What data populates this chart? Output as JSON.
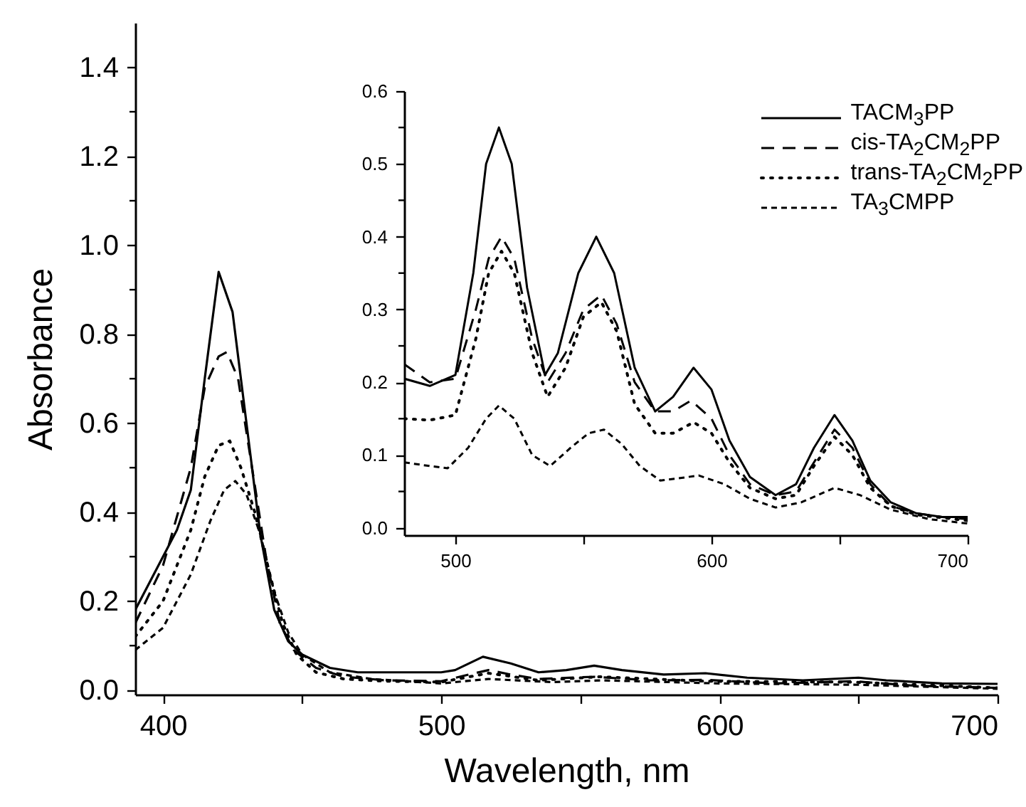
{
  "chart_data": [
    {
      "type": "line",
      "xlabel": "Wavelength, nm",
      "ylabel": "Absorbance",
      "xlim": [
        390,
        700
      ],
      "ylim": [
        -0.01,
        1.5
      ],
      "xticks": [
        400,
        {
          "value": 450,
          "label": null
        },
        500,
        {
          "value": 550,
          "label": null
        },
        600,
        {
          "value": 650,
          "label": null
        },
        700
      ],
      "yticks": [
        {
          "value": 0,
          "label": "0.0"
        },
        {
          "value": 0.1,
          "label": null
        },
        0.2,
        {
          "value": 0.3,
          "label": null
        },
        0.4,
        {
          "value": 0.5,
          "label": null
        },
        0.6,
        {
          "value": 0.7,
          "label": null
        },
        0.8,
        {
          "value": 0.9,
          "label": null
        },
        {
          "value": 1.0,
          "label": "1.0"
        },
        {
          "value": 1.1,
          "label": null
        },
        1.2,
        {
          "value": 1.3,
          "label": null
        },
        1.4
      ],
      "series": [
        {
          "color": "#000000",
          "line_style": "solid",
          "x": [
            390,
            400,
            405,
            410,
            415,
            420,
            425,
            430,
            435,
            440,
            445,
            450,
            460,
            470,
            500,
            505,
            515,
            525,
            535,
            545,
            555,
            565,
            580,
            595,
            610,
            630,
            650,
            660,
            680,
            700
          ],
          "values": [
            0.18,
            0.3,
            0.36,
            0.45,
            0.7,
            0.94,
            0.85,
            0.6,
            0.35,
            0.18,
            0.11,
            0.08,
            0.05,
            0.04,
            0.04,
            0.045,
            0.075,
            0.06,
            0.04,
            0.045,
            0.055,
            0.045,
            0.035,
            0.038,
            0.028,
            0.022,
            0.028,
            0.022,
            0.015,
            0.014
          ]
        },
        {
          "color": "#000000",
          "line_style": "dashed",
          "x": [
            390,
            400,
            410,
            415,
            420,
            423,
            427,
            432,
            437,
            442,
            447,
            455,
            465,
            480,
            500,
            510,
            517,
            525,
            535,
            555,
            575,
            595,
            620,
            648,
            670,
            700
          ],
          "values": [
            0.15,
            0.28,
            0.5,
            0.68,
            0.75,
            0.76,
            0.7,
            0.5,
            0.3,
            0.15,
            0.09,
            0.05,
            0.03,
            0.022,
            0.02,
            0.035,
            0.045,
            0.035,
            0.025,
            0.03,
            0.022,
            0.023,
            0.015,
            0.02,
            0.01,
            0.005
          ]
        },
        {
          "color": "#000000",
          "line_style": "dotted",
          "x": [
            390,
            400,
            410,
            415,
            420,
            424,
            428,
            433,
            438,
            443,
            448,
            455,
            465,
            480,
            500,
            517,
            535,
            557,
            595,
            648,
            700
          ],
          "values": [
            0.12,
            0.2,
            0.36,
            0.48,
            0.55,
            0.56,
            0.5,
            0.4,
            0.27,
            0.15,
            0.08,
            0.04,
            0.025,
            0.02,
            0.018,
            0.038,
            0.022,
            0.03,
            0.02,
            0.018,
            0.005
          ]
        },
        {
          "color": "#000000",
          "line_style": "dashed",
          "x": [
            390,
            400,
            410,
            417,
            422,
            426,
            430,
            435,
            440,
            445,
            450,
            460,
            475,
            500,
            517,
            540,
            558,
            600,
            650,
            700
          ],
          "values": [
            0.09,
            0.14,
            0.26,
            0.38,
            0.45,
            0.47,
            0.44,
            0.35,
            0.22,
            0.13,
            0.08,
            0.04,
            0.025,
            0.015,
            0.025,
            0.018,
            0.022,
            0.015,
            0.012,
            0.003
          ]
        }
      ]
    },
    {
      "type": "line",
      "legend": "top right",
      "xlim": [
        480,
        700
      ],
      "ylim": [
        -0.01,
        0.6
      ],
      "xticks": [
        500,
        {
          "value": 550,
          "label": null
        },
        600,
        {
          "value": 650,
          "label": null
        },
        700
      ],
      "yticks": [
        {
          "value": 0,
          "label": "0.0"
        },
        {
          "value": 0.05,
          "label": null
        },
        0.1,
        {
          "value": 0.15,
          "label": null
        },
        0.2,
        {
          "value": 0.25,
          "label": null
        },
        0.3,
        {
          "value": 0.35,
          "label": null
        },
        0.4,
        {
          "value": 0.45,
          "label": null
        },
        0.5,
        {
          "value": 0.55,
          "label": null
        },
        0.6
      ],
      "series": [
        {
          "name": "TACM$_{3}$PP",
          "color": "#000000",
          "line_style": "solid",
          "x": [
            480,
            490,
            500,
            507,
            512,
            517,
            522,
            528,
            535,
            540,
            548,
            555,
            562,
            570,
            578,
            585,
            593,
            600,
            607,
            615,
            625,
            633,
            640,
            648,
            655,
            662,
            670,
            680,
            690,
            700
          ],
          "values": [
            0.205,
            0.195,
            0.21,
            0.35,
            0.5,
            0.55,
            0.5,
            0.33,
            0.21,
            0.24,
            0.35,
            0.4,
            0.35,
            0.22,
            0.16,
            0.18,
            0.22,
            0.19,
            0.12,
            0.07,
            0.045,
            0.06,
            0.11,
            0.155,
            0.12,
            0.065,
            0.035,
            0.02,
            0.015,
            0.015
          ]
        },
        {
          "name": "cis-TA$_{2}$CM$_{2}$PP",
          "color": "#000000",
          "line_style": "dashed",
          "x": [
            480,
            490,
            500,
            508,
            513,
            518,
            523,
            530,
            536,
            543,
            550,
            557,
            563,
            570,
            578,
            585,
            592,
            600,
            607,
            615,
            625,
            633,
            640,
            648,
            655,
            662,
            670,
            680,
            690,
            700
          ],
          "values": [
            0.225,
            0.2,
            0.205,
            0.3,
            0.37,
            0.4,
            0.37,
            0.26,
            0.2,
            0.24,
            0.3,
            0.32,
            0.28,
            0.2,
            0.16,
            0.16,
            0.175,
            0.15,
            0.1,
            0.06,
            0.045,
            0.05,
            0.09,
            0.135,
            0.11,
            0.06,
            0.03,
            0.02,
            0.015,
            0.012
          ]
        },
        {
          "name": "trans-TA$_{2}$CM$_{2}$PP",
          "color": "#000000",
          "line_style": "dotted",
          "x": [
            480,
            490,
            500,
            508,
            513,
            518,
            523,
            530,
            536,
            543,
            550,
            557,
            563,
            570,
            578,
            585,
            593,
            600,
            607,
            615,
            625,
            633,
            640,
            648,
            655,
            662,
            670,
            680,
            700
          ],
          "values": [
            0.15,
            0.148,
            0.155,
            0.26,
            0.35,
            0.38,
            0.35,
            0.24,
            0.18,
            0.22,
            0.29,
            0.31,
            0.27,
            0.17,
            0.13,
            0.13,
            0.145,
            0.13,
            0.09,
            0.055,
            0.04,
            0.045,
            0.085,
            0.125,
            0.1,
            0.055,
            0.03,
            0.018,
            0.01
          ]
        },
        {
          "name": "TA$_{3}$CMPP",
          "color": "#000000",
          "line_style": "dashed",
          "x": [
            480,
            490,
            497,
            505,
            512,
            517,
            523,
            530,
            537,
            545,
            552,
            558,
            565,
            572,
            580,
            587,
            595,
            605,
            615,
            625,
            635,
            648,
            658,
            670,
            685,
            700
          ],
          "values": [
            0.09,
            0.085,
            0.082,
            0.11,
            0.15,
            0.168,
            0.15,
            0.1,
            0.085,
            0.11,
            0.13,
            0.135,
            0.115,
            0.085,
            0.065,
            0.068,
            0.072,
            0.06,
            0.04,
            0.028,
            0.035,
            0.055,
            0.045,
            0.025,
            0.012,
            0.006
          ]
        }
      ]
    }
  ]
}
